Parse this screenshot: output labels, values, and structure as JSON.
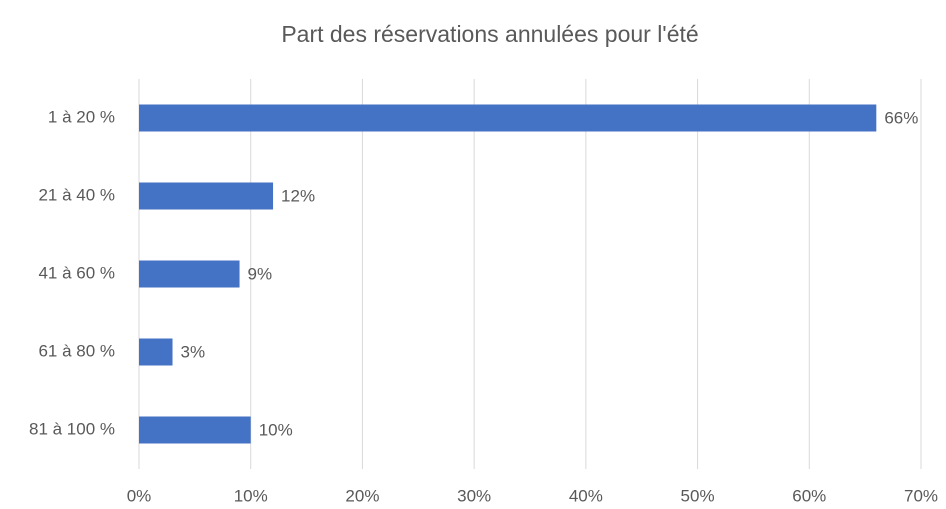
{
  "chart_data": {
    "type": "hbar",
    "title": "Part des réservations annulées pour l'été",
    "categories": [
      "1 à 20 %",
      "21 à 40 %",
      "41 à 60 %",
      "61 à 80 %",
      "81 à 100 %"
    ],
    "values": [
      66,
      12,
      9,
      3,
      10
    ],
    "value_labels": [
      "66%",
      "12%",
      "9%",
      "3%",
      "10%"
    ],
    "color": "#4472c4",
    "xlim": [
      0,
      70
    ],
    "xticks": [
      {
        "value": 0,
        "label": "0%"
      },
      {
        "value": 10,
        "label": "10%"
      },
      {
        "value": 20,
        "label": "20%"
      },
      {
        "value": 30,
        "label": "30%"
      },
      {
        "value": 40,
        "label": "40%"
      },
      {
        "value": 50,
        "label": "50%"
      },
      {
        "value": 60,
        "label": "60%"
      },
      {
        "value": 70,
        "label": "70%"
      }
    ],
    "grid": true
  }
}
